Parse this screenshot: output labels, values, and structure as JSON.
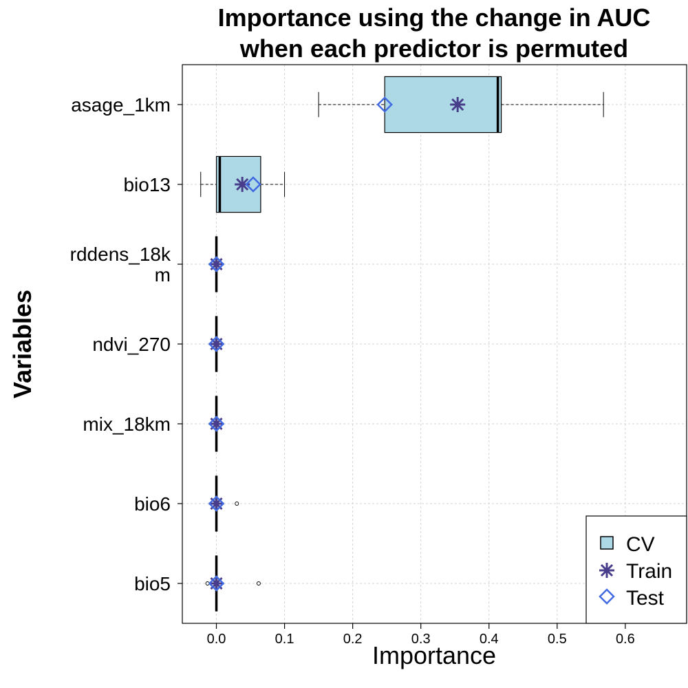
{
  "chart_data": {
    "type": "boxplot",
    "title_lines": [
      "Importance using the change in AUC",
      "when each predictor is permuted"
    ],
    "xlabel": "Importance",
    "ylabel": "Variables",
    "xlim": [
      -0.05,
      0.69
    ],
    "xticks": [
      0.0,
      0.1,
      0.2,
      0.3,
      0.4,
      0.5,
      0.6
    ],
    "xtick_labels": [
      "0.0",
      "0.1",
      "0.2",
      "0.3",
      "0.4",
      "0.5",
      "0.6"
    ],
    "grid": true,
    "legend_position": "bottom-right",
    "legend": [
      {
        "key": "cv",
        "label": "CV"
      },
      {
        "key": "train",
        "label": "Train"
      },
      {
        "key": "test",
        "label": "Test"
      }
    ],
    "colors": {
      "box_fill": "#add8e6",
      "train": "#483d8b",
      "test": "#4169e1",
      "grid": "#d3d3d3"
    },
    "categories": [
      {
        "label_lines": [
          "asage_1km"
        ],
        "whisker_low": 0.15,
        "q1": 0.247,
        "median": 0.413,
        "q3": 0.418,
        "whisker_high": 0.568,
        "outliers": [],
        "train": 0.354,
        "test": 0.247
      },
      {
        "label_lines": [
          "bio13"
        ],
        "whisker_low": -0.023,
        "q1": 0.0,
        "median": 0.005,
        "q3": 0.065,
        "whisker_high": 0.1,
        "outliers": [],
        "train": 0.038,
        "test": 0.054
      },
      {
        "label_lines": [
          "rddens_18k",
          "m"
        ],
        "whisker_low": 0.0,
        "q1": 0.0,
        "median": 0.0,
        "q3": 0.0,
        "whisker_high": 0.0,
        "outliers": [],
        "train": 0.0,
        "test": 0.0
      },
      {
        "label_lines": [
          "ndvi_270"
        ],
        "whisker_low": 0.0,
        "q1": 0.0,
        "median": 0.0,
        "q3": 0.0,
        "whisker_high": 0.0,
        "outliers": [],
        "train": 0.0,
        "test": 0.0
      },
      {
        "label_lines": [
          "mix_18km"
        ],
        "whisker_low": 0.0,
        "q1": 0.0,
        "median": 0.0,
        "q3": 0.0,
        "whisker_high": 0.0,
        "outliers": [],
        "train": 0.0,
        "test": 0.0
      },
      {
        "label_lines": [
          "bio6"
        ],
        "whisker_low": 0.0,
        "q1": 0.0,
        "median": 0.0,
        "q3": 0.0,
        "whisker_high": 0.0,
        "outliers": [
          0.03
        ],
        "train": 0.0,
        "test": 0.0
      },
      {
        "label_lines": [
          "bio5"
        ],
        "whisker_low": 0.0,
        "q1": 0.0,
        "median": 0.0,
        "q3": 0.0,
        "whisker_high": 0.0,
        "outliers": [
          -0.013,
          0.062
        ],
        "train": 0.0,
        "test": 0.0
      }
    ]
  }
}
